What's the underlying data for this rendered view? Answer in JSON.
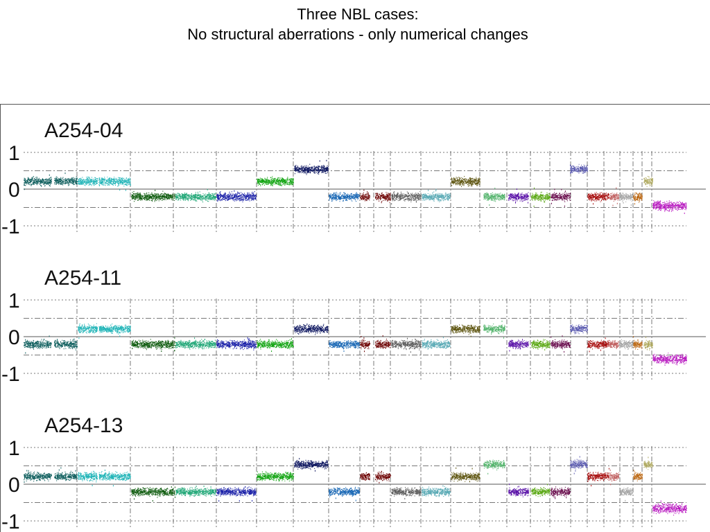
{
  "title": {
    "line1": "Three NBL cases:",
    "line2": "No structural aberrations - only numerical changes"
  },
  "chart_data": [
    {
      "type": "scatter",
      "title": "A254-04",
      "ylim": [
        -1,
        1
      ],
      "yticks": [
        1,
        0,
        -1
      ],
      "grid": true,
      "segments": [
        {
          "color": "#11605f",
          "mean": 0.22,
          "spread": 0.05
        },
        {
          "color": "#11605f",
          "mean": 0.22,
          "spread": 0.05
        },
        {
          "color": "#22b5b8",
          "mean": 0.22,
          "spread": 0.05
        },
        {
          "color": "#22b5b8",
          "mean": 0.22,
          "spread": 0.05
        },
        {
          "color": "#0f5c0f",
          "mean": -0.2,
          "spread": 0.05
        },
        {
          "color": "#0f5c0f",
          "mean": -0.2,
          "spread": 0.05
        },
        {
          "color": "#22a878",
          "mean": -0.2,
          "spread": 0.05
        },
        {
          "color": "#1a20a8",
          "mean": -0.2,
          "spread": 0.05
        },
        {
          "color": "#13a513",
          "mean": 0.22,
          "spread": 0.05
        },
        {
          "color": "#0d1660",
          "mean": 0.55,
          "spread": 0.05
        },
        {
          "color": "#1a68b5",
          "mean": -0.2,
          "spread": 0.05
        },
        {
          "color": "#700808",
          "mean": -0.2,
          "spread": 0.05
        },
        {
          "color": "#700808",
          "mean": -0.2,
          "spread": 0.05
        },
        {
          "color": "#5e5e5e",
          "mean": -0.2,
          "spread": 0.05
        },
        {
          "color": "#5aaab5",
          "mean": -0.2,
          "spread": 0.05
        },
        {
          "color": "#5e5510",
          "mean": 0.22,
          "spread": 0.05
        },
        {
          "color": "#56b56e",
          "mean": -0.2,
          "spread": 0.05
        },
        {
          "color": "#5a12a8",
          "mean": -0.2,
          "spread": 0.05
        },
        {
          "color": "#5aa813",
          "mean": -0.2,
          "spread": 0.05
        },
        {
          "color": "#6a0e4e",
          "mean": -0.2,
          "spread": 0.05
        },
        {
          "color": "#6a0e4e",
          "mean": -0.2,
          "spread": 0.05
        },
        {
          "color": "#5a5ab0",
          "mean": 0.55,
          "spread": 0.05
        },
        {
          "color": "#a80f0f",
          "mean": -0.2,
          "spread": 0.05
        },
        {
          "color": "#c06060",
          "mean": -0.2,
          "spread": 0.05
        },
        {
          "color": "#a5a5a5",
          "mean": -0.2,
          "spread": 0.05
        },
        {
          "color": "#bb6610",
          "mean": -0.2,
          "spread": 0.05
        },
        {
          "color": "#b0aa60",
          "mean": 0.22,
          "spread": 0.05
        },
        {
          "color": "#b818c0",
          "mean": -0.45,
          "spread": 0.06
        }
      ]
    },
    {
      "type": "scatter",
      "title": "A254-11",
      "ylim": [
        -1,
        1
      ],
      "yticks": [
        1,
        0,
        -1
      ],
      "grid": true,
      "segments": [
        {
          "color": "#11605f",
          "mean": -0.2,
          "spread": 0.05
        },
        {
          "color": "#11605f",
          "mean": -0.2,
          "spread": 0.05
        },
        {
          "color": "#22b5b8",
          "mean": 0.22,
          "spread": 0.05
        },
        {
          "color": "#22b5b8",
          "mean": 0.22,
          "spread": 0.05
        },
        {
          "color": "#0f5c0f",
          "mean": -0.2,
          "spread": 0.05
        },
        {
          "color": "#0f5c0f",
          "mean": -0.2,
          "spread": 0.05
        },
        {
          "color": "#22a878",
          "mean": -0.2,
          "spread": 0.05
        },
        {
          "color": "#1a20a8",
          "mean": -0.2,
          "spread": 0.05
        },
        {
          "color": "#13a513",
          "mean": -0.2,
          "spread": 0.05
        },
        {
          "color": "#0d1660",
          "mean": 0.22,
          "spread": 0.05
        },
        {
          "color": "#1a68b5",
          "mean": -0.2,
          "spread": 0.05
        },
        {
          "color": "#700808",
          "mean": -0.2,
          "spread": 0.05
        },
        {
          "color": "#700808",
          "mean": -0.2,
          "spread": 0.05
        },
        {
          "color": "#5e5e5e",
          "mean": -0.2,
          "spread": 0.05
        },
        {
          "color": "#5aaab5",
          "mean": -0.2,
          "spread": 0.05
        },
        {
          "color": "#5e5510",
          "mean": 0.22,
          "spread": 0.05
        },
        {
          "color": "#56b56e",
          "mean": 0.22,
          "spread": 0.05
        },
        {
          "color": "#5a12a8",
          "mean": -0.2,
          "spread": 0.05
        },
        {
          "color": "#5aa813",
          "mean": -0.2,
          "spread": 0.05
        },
        {
          "color": "#6a0e4e",
          "mean": -0.2,
          "spread": 0.05
        },
        {
          "color": "#6a0e4e",
          "mean": -0.2,
          "spread": 0.05
        },
        {
          "color": "#5a5ab0",
          "mean": 0.22,
          "spread": 0.05
        },
        {
          "color": "#a80f0f",
          "mean": -0.2,
          "spread": 0.05
        },
        {
          "color": "#c06060",
          "mean": -0.2,
          "spread": 0.05
        },
        {
          "color": "#a5a5a5",
          "mean": -0.2,
          "spread": 0.05
        },
        {
          "color": "#bb6610",
          "mean": -0.2,
          "spread": 0.05
        },
        {
          "color": "#b0aa60",
          "mean": -0.2,
          "spread": 0.05
        },
        {
          "color": "#b818c0",
          "mean": -0.6,
          "spread": 0.06
        }
      ]
    },
    {
      "type": "scatter",
      "title": "A254-13",
      "ylim": [
        -1,
        1
      ],
      "yticks": [
        1,
        0,
        -1
      ],
      "grid": true,
      "segments": [
        {
          "color": "#11605f",
          "mean": 0.22,
          "spread": 0.05
        },
        {
          "color": "#11605f",
          "mean": 0.22,
          "spread": 0.05
        },
        {
          "color": "#22b5b8",
          "mean": 0.22,
          "spread": 0.05
        },
        {
          "color": "#22b5b8",
          "mean": 0.22,
          "spread": 0.05
        },
        {
          "color": "#0f5c0f",
          "mean": -0.2,
          "spread": 0.05
        },
        {
          "color": "#0f5c0f",
          "mean": -0.2,
          "spread": 0.05
        },
        {
          "color": "#22a878",
          "mean": -0.2,
          "spread": 0.05
        },
        {
          "color": "#1a20a8",
          "mean": -0.2,
          "spread": 0.05
        },
        {
          "color": "#13a513",
          "mean": 0.22,
          "spread": 0.05
        },
        {
          "color": "#0d1660",
          "mean": 0.55,
          "spread": 0.05
        },
        {
          "color": "#1a68b5",
          "mean": -0.2,
          "spread": 0.05
        },
        {
          "color": "#700808",
          "mean": 0.22,
          "spread": 0.05
        },
        {
          "color": "#700808",
          "mean": 0.22,
          "spread": 0.05
        },
        {
          "color": "#5e5e5e",
          "mean": -0.2,
          "spread": 0.05
        },
        {
          "color": "#5aaab5",
          "mean": -0.2,
          "spread": 0.05
        },
        {
          "color": "#5e5510",
          "mean": 0.22,
          "spread": 0.05
        },
        {
          "color": "#56b56e",
          "mean": 0.55,
          "spread": 0.05
        },
        {
          "color": "#5a12a8",
          "mean": -0.2,
          "spread": 0.05
        },
        {
          "color": "#5aa813",
          "mean": -0.2,
          "spread": 0.05
        },
        {
          "color": "#6a0e4e",
          "mean": -0.2,
          "spread": 0.05
        },
        {
          "color": "#6a0e4e",
          "mean": -0.2,
          "spread": 0.05
        },
        {
          "color": "#5a5ab0",
          "mean": 0.55,
          "spread": 0.05
        },
        {
          "color": "#a80f0f",
          "mean": 0.22,
          "spread": 0.05
        },
        {
          "color": "#c06060",
          "mean": 0.22,
          "spread": 0.05
        },
        {
          "color": "#a5a5a5",
          "mean": -0.2,
          "spread": 0.05
        },
        {
          "color": "#bb6610",
          "mean": 0.22,
          "spread": 0.05
        },
        {
          "color": "#b0aa60",
          "mean": 0.55,
          "spread": 0.05
        },
        {
          "color": "#b818c0",
          "mean": -0.65,
          "spread": 0.06
        }
      ]
    }
  ]
}
